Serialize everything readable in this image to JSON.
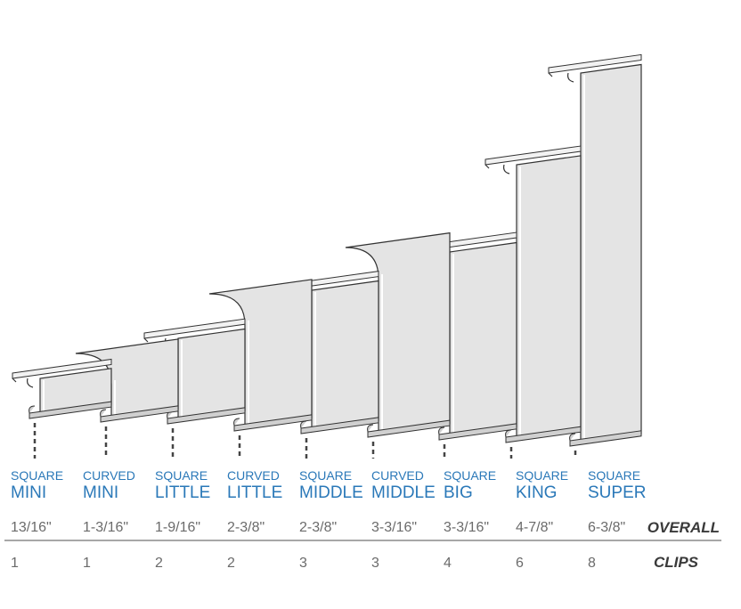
{
  "products": [
    {
      "style": "SQUARE",
      "name": "MINI",
      "overall": "13/16\"",
      "clips": 1
    },
    {
      "style": "CURVED",
      "name": "MINI",
      "overall": "1-3/16\"",
      "clips": 1
    },
    {
      "style": "SQUARE",
      "name": "LITTLE",
      "overall": "1-9/16\"",
      "clips": 2
    },
    {
      "style": "CURVED",
      "name": "LITTLE",
      "overall": "2-3/8\"",
      "clips": 2
    },
    {
      "style": "SQUARE",
      "name": "MIDDLE",
      "overall": "2-3/8\"",
      "clips": 3
    },
    {
      "style": "CURVED",
      "name": "MIDDLE",
      "overall": "3-3/16\"",
      "clips": 3
    },
    {
      "style": "SQUARE",
      "name": "BIG",
      "overall": "3-3/16\"",
      "clips": 4
    },
    {
      "style": "SQUARE",
      "name": "KING",
      "overall": "4-7/8\"",
      "clips": 6
    },
    {
      "style": "SQUARE",
      "name": "SUPER",
      "overall": "6-3/8\"",
      "clips": 8
    }
  ],
  "row_labels": {
    "overall": "OVERALL",
    "clips": "CLIPS"
  }
}
